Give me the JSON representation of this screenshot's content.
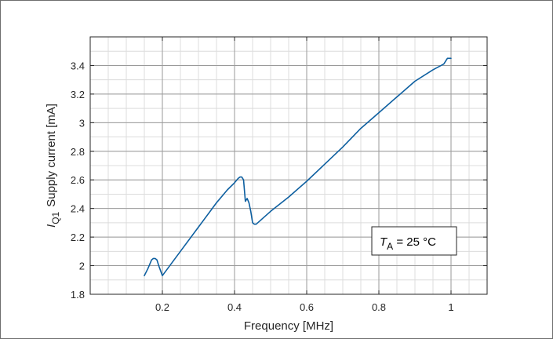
{
  "chart_data": {
    "type": "line",
    "title": "",
    "xlabel": "Frequency [MHz]",
    "ylabel": {
      "symbol": "I",
      "subscript": "Q1",
      "text": "Supply current [mA]"
    },
    "xlim": [
      0,
      1.1
    ],
    "ylim": [
      1.8,
      3.6
    ],
    "x_ticks": [
      0.2,
      0.4,
      0.6,
      0.8,
      1.0
    ],
    "x_tick_labels": [
      "0.2",
      "0.4",
      "0.6",
      "0.8",
      "1"
    ],
    "y_ticks": [
      1.8,
      2.0,
      2.2,
      2.4,
      2.6,
      2.8,
      3.0,
      3.2,
      3.4
    ],
    "y_tick_labels": [
      "1.8",
      "2",
      "2.2",
      "2.4",
      "2.6",
      "2.8",
      "3",
      "3.2",
      "3.4"
    ],
    "minor_x_step": 0.05,
    "minor_y_step": 0.1,
    "grid": true,
    "annotation": {
      "symbol": "T",
      "subscript": "A",
      "text": " = 25 °C",
      "position": "bottom-right"
    },
    "series": [
      {
        "color": "#0d5fa0",
        "x": [
          0.15,
          0.16,
          0.17,
          0.175,
          0.18,
          0.185,
          0.19,
          0.2,
          0.25,
          0.3,
          0.35,
          0.38,
          0.4,
          0.41,
          0.415,
          0.42,
          0.425,
          0.43,
          0.435,
          0.44,
          0.445,
          0.45,
          0.455,
          0.46,
          0.5,
          0.55,
          0.6,
          0.65,
          0.7,
          0.75,
          0.8,
          0.85,
          0.9,
          0.95,
          0.98,
          0.99,
          1.0
        ],
        "y": [
          1.93,
          1.98,
          2.04,
          2.05,
          2.05,
          2.04,
          2.0,
          1.93,
          2.1,
          2.27,
          2.44,
          2.53,
          2.58,
          2.61,
          2.62,
          2.62,
          2.6,
          2.45,
          2.47,
          2.44,
          2.38,
          2.3,
          2.29,
          2.29,
          2.38,
          2.48,
          2.59,
          2.71,
          2.83,
          2.96,
          3.07,
          3.18,
          3.29,
          3.37,
          3.41,
          3.45,
          3.45
        ]
      }
    ]
  }
}
